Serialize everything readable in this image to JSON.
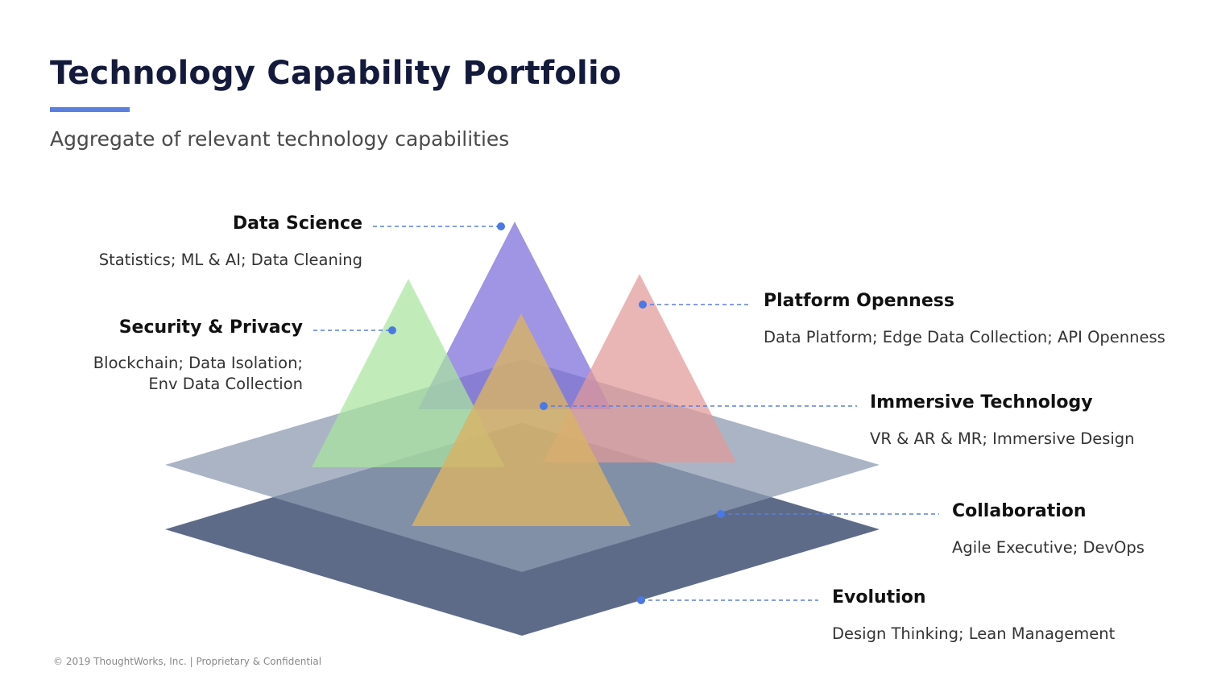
{
  "slide": {
    "title": "Technology Capability Portfolio",
    "subtitle": "Aggregate of relevant technology capabilities",
    "accent_color": "#5b7fde",
    "footer": "© 2019 ThoughtWorks, Inc. | Proprietary & Confidential"
  },
  "capabilities": {
    "data_science": {
      "title": "Data Science",
      "desc": "Statistics; ML & AI; Data Cleaning",
      "color": "#7b6bd9"
    },
    "security_privacy": {
      "title": "Security & Privacy",
      "desc_line1": "Blockchain; Data Isolation;",
      "desc_line2": "Env Data Collection",
      "color": "#a9e5a0"
    },
    "platform_openness": {
      "title": "Platform Openness",
      "desc": "Data Platform; Edge Data Collection; API Openness",
      "color": "#e29a98"
    },
    "immersive_technology": {
      "title": "Immersive Technology",
      "desc": "VR & AR & MR; Immersive Design",
      "color": "#d8b266"
    },
    "collaboration": {
      "title": "Collaboration",
      "desc": "Agile Executive; DevOps",
      "color": "#8d9bb1"
    },
    "evolution": {
      "title": "Evolution",
      "desc": "Design Thinking; Lean Management",
      "color": "#5e6b88"
    }
  }
}
